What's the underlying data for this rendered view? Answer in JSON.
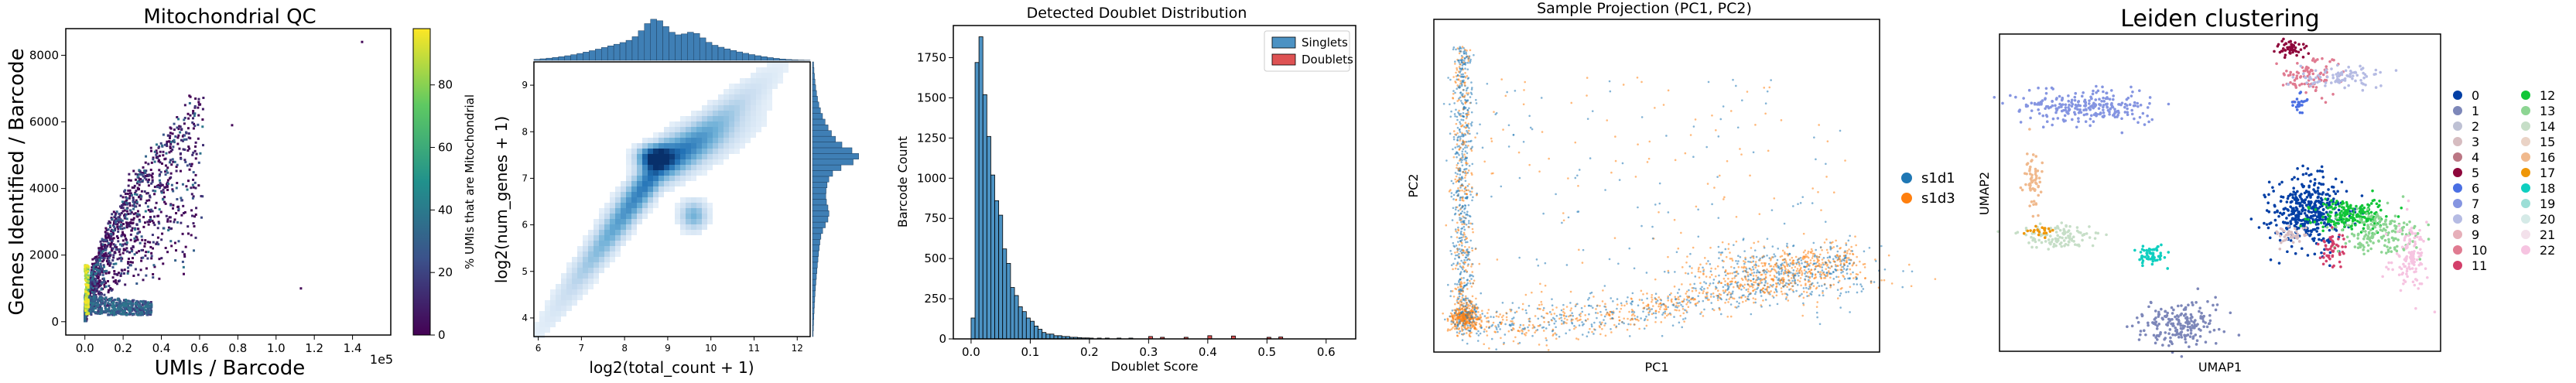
{
  "panels": {
    "qc": {
      "title": "Mitochondrial QC",
      "xlabel": "UMIs / Barcode",
      "ylabel": "Genes Identified / Barcode",
      "x_exponent": "1e5",
      "colorbar_label": "% UMIs that are Mitochondrial"
    },
    "joint": {
      "xlabel": "log2(total_count + 1)",
      "ylabel": "log2(num_genes + 1)"
    },
    "doublet": {
      "title": "Detected Doublet Distribution",
      "xlabel": "Doublet Score",
      "ylabel": "Barcode Count"
    },
    "pca": {
      "title": "Sample Projection (PC1, PC2)",
      "xlabel": "PC1",
      "ylabel": "PC2"
    },
    "umap": {
      "title": "Leiden clustering",
      "xlabel": "UMAP1",
      "ylabel": "UMAP2"
    }
  },
  "chart_data": [
    {
      "type": "scatter",
      "title": "Mitochondrial QC",
      "xlabel": "UMIs / Barcode",
      "ylabel": "Genes Identified / Barcode",
      "xlim": [
        -0.1,
        1.6
      ],
      "ylim": [
        -400,
        8800
      ],
      "x_ticks": [
        "0.0",
        "0.2",
        "0.4",
        "0.6",
        "0.8",
        "1.0",
        "1.2",
        "1.4"
      ],
      "y_ticks": [
        "0",
        "2000",
        "4000",
        "6000",
        "8000"
      ],
      "x_tick_values": [
        0,
        0.2,
        0.4,
        0.6,
        0.8,
        1.0,
        1.2,
        1.4
      ],
      "y_tick_values": [
        0,
        2000,
        4000,
        6000,
        8000
      ],
      "color_by": "% UMIs that are Mitochondrial",
      "colorbar_ticks": [
        "0",
        "20",
        "40",
        "60",
        "80"
      ],
      "colorbar_tick_values": [
        0,
        20,
        40,
        60,
        80
      ],
      "colorbar_range": [
        0,
        98
      ],
      "colormap": [
        "#440154",
        "#3b528b",
        "#21918c",
        "#5ec962",
        "#fde725"
      ],
      "outliers": [
        [
          1.13,
          1000
        ],
        [
          1.45,
          8400
        ],
        [
          0.77,
          5900
        ],
        [
          0.58,
          4400
        ]
      ]
    },
    {
      "type": "heatmap",
      "subtype": "joint-hexbin",
      "xlabel": "log2(total_count + 1)",
      "ylabel": "log2(num_genes + 1)",
      "xlim": [
        5.9,
        12.3
      ],
      "ylim": [
        3.6,
        9.5
      ],
      "x_ticks": [
        "6",
        "7",
        "8",
        "9",
        "10",
        "11",
        "12"
      ],
      "y_ticks": [
        "4",
        "5",
        "6",
        "7",
        "8",
        "9"
      ],
      "x_tick_values": [
        6,
        7,
        8,
        9,
        10,
        11,
        12
      ],
      "y_tick_values": [
        4,
        5,
        6,
        7,
        8,
        9
      ],
      "peak": [
        8.7,
        7.45
      ],
      "secondary_cluster": [
        9.6,
        6.2
      ],
      "color": "#1f77b4"
    },
    {
      "type": "bar",
      "subtype": "histogram",
      "title": "Detected Doublet Distribution",
      "xlabel": "Doublet Score",
      "ylabel": "Barcode Count",
      "xlim": [
        -0.03,
        0.65
      ],
      "ylim": [
        0,
        1950
      ],
      "x_ticks": [
        "0.0",
        "0.1",
        "0.2",
        "0.3",
        "0.4",
        "0.5",
        "0.6"
      ],
      "y_ticks": [
        "0",
        "250",
        "500",
        "750",
        "1000",
        "1250",
        "1500",
        "1750"
      ],
      "x_tick_values": [
        0,
        0.1,
        0.2,
        0.3,
        0.4,
        0.5,
        0.6
      ],
      "y_tick_values": [
        0,
        250,
        500,
        750,
        1000,
        1250,
        1500,
        1750
      ],
      "bin_width": 0.00667,
      "series": [
        {
          "name": "Singlets",
          "color": "#1f77b4",
          "bin_starts": [
            0.0,
            0.0067,
            0.0133,
            0.02,
            0.0267,
            0.0333,
            0.04,
            0.0467,
            0.0533,
            0.06,
            0.0667,
            0.0733,
            0.08,
            0.0867,
            0.0933,
            0.1,
            0.1067,
            0.1133,
            0.12,
            0.1267,
            0.1333,
            0.14,
            0.1467,
            0.1533,
            0.16,
            0.1667,
            0.1733,
            0.18,
            0.1867,
            0.1933,
            0.2,
            0.2133,
            0.2267,
            0.2467,
            0.2667
          ],
          "values": [
            130,
            1720,
            1880,
            1520,
            1260,
            1020,
            860,
            770,
            560,
            470,
            320,
            270,
            200,
            170,
            130,
            110,
            80,
            60,
            40,
            30,
            30,
            20,
            20,
            15,
            15,
            10,
            10,
            8,
            6,
            6,
            5,
            5,
            5,
            5,
            5
          ]
        },
        {
          "name": "Doublets",
          "color": "#d62728",
          "bin_starts": [
            0.3,
            0.32,
            0.36,
            0.4,
            0.44,
            0.5,
            0.52
          ],
          "values": [
            15,
            10,
            10,
            20,
            18,
            10,
            12
          ]
        }
      ],
      "legend": "top-right"
    },
    {
      "type": "scatter",
      "title": "Sample Projection (PC1, PC2)",
      "xlabel": "PC1",
      "ylabel": "PC2",
      "ticks": false,
      "legend": "outside-right",
      "series": [
        {
          "name": "s1d1",
          "color": "#1f77b4"
        },
        {
          "name": "s1d3",
          "color": "#ff7f0e"
        }
      ]
    },
    {
      "type": "scatter",
      "title": "Leiden clustering",
      "xlabel": "UMAP1",
      "ylabel": "UMAP2",
      "ticks": false,
      "legend": "outside-right",
      "clusters": [
        {
          "name": "0",
          "color": "#023fa5"
        },
        {
          "name": "1",
          "color": "#7d87b9"
        },
        {
          "name": "2",
          "color": "#bec1d4"
        },
        {
          "name": "3",
          "color": "#d6bcc0"
        },
        {
          "name": "4",
          "color": "#bb7784"
        },
        {
          "name": "5",
          "color": "#8e063b"
        },
        {
          "name": "6",
          "color": "#4a6fe3"
        },
        {
          "name": "7",
          "color": "#8595e1"
        },
        {
          "name": "8",
          "color": "#b5bbe3"
        },
        {
          "name": "9",
          "color": "#e6afb9"
        },
        {
          "name": "10",
          "color": "#e07b91"
        },
        {
          "name": "11",
          "color": "#d33f6a"
        },
        {
          "name": "12",
          "color": "#11c638"
        },
        {
          "name": "13",
          "color": "#8dd593"
        },
        {
          "name": "14",
          "color": "#c6dec7"
        },
        {
          "name": "15",
          "color": "#ead3c6"
        },
        {
          "name": "16",
          "color": "#f0b98d"
        },
        {
          "name": "17",
          "color": "#ef9708"
        },
        {
          "name": "18",
          "color": "#0fcfc0"
        },
        {
          "name": "19",
          "color": "#9cded6"
        },
        {
          "name": "20",
          "color": "#d5eae7"
        },
        {
          "name": "21",
          "color": "#f3e1eb"
        },
        {
          "name": "22",
          "color": "#f6c4e1"
        }
      ]
    }
  ]
}
